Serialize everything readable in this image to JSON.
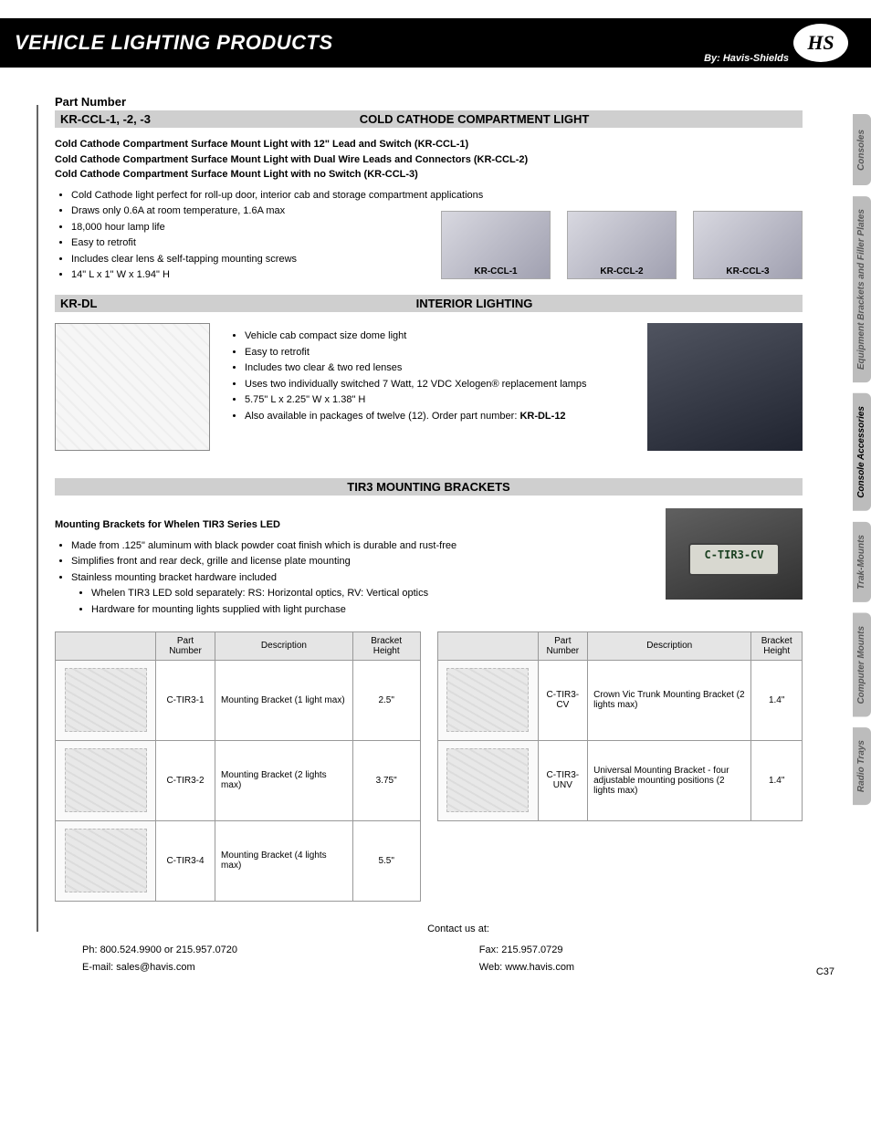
{
  "header": {
    "title": "VEHICLE LIGHTING PRODUCTS",
    "byline": "By: Havis-Shields",
    "logo_text": "HS"
  },
  "side_tabs": [
    {
      "label": "Consoles",
      "active": false
    },
    {
      "label": "Equipment Brackets and Filler Plates",
      "active": false
    },
    {
      "label": "Console Accessories",
      "active": true
    },
    {
      "label": "Trak-Mounts",
      "active": false
    },
    {
      "label": "Computer Mounts",
      "active": false
    },
    {
      "label": "Radio Trays",
      "active": false
    }
  ],
  "part_number_label": "Part Number",
  "section1": {
    "part": "KR-CCL-1, -2, -3",
    "title": "COLD CATHODE COMPARTMENT LIGHT",
    "subheads": [
      "Cold Cathode Compartment Surface Mount Light with 12\" Lead and Switch (KR-CCL-1)",
      "Cold Cathode Compartment Surface Mount Light with Dual Wire Leads and Connectors (KR-CCL-2)",
      "Cold Cathode Compartment Surface Mount Light with no Switch (KR-CCL-3)"
    ],
    "bullets": [
      "Cold Cathode light perfect for roll-up door, interior cab and storage compartment applications",
      "Draws only 0.6A at room temperature, 1.6A max",
      "18,000 hour lamp life",
      "Easy to retrofit",
      "Includes clear lens & self-tapping mounting screws",
      "14\" L x 1\" W x 1.94\" H"
    ],
    "images": [
      {
        "caption": "KR-CCL-1"
      },
      {
        "caption": "KR-CCL-2"
      },
      {
        "caption": "KR-CCL-3"
      }
    ]
  },
  "section2": {
    "part": "KR-DL",
    "title": "INTERIOR LIGHTING",
    "bullets": [
      "Vehicle cab compact size dome light",
      "Easy to retrofit",
      "Includes two clear & two red lenses",
      "Uses two individually switched 7 Watt, 12 VDC Xelogen® replacement lamps",
      "5.75\" L x 2.25\" W x 1.38\" H"
    ],
    "last_bullet_prefix": "Also available in packages of twelve (12). Order part number: ",
    "last_bullet_bold": "KR-DL-12"
  },
  "section3": {
    "title": "TIR3 MOUNTING BRACKETS",
    "subhead": "Mounting Brackets for Whelen TIR3 Series LED",
    "bullets": [
      "Made from .125\" aluminum with black powder coat finish which is durable and rust-free",
      "Simplifies front and rear deck, grille and license plate mounting",
      "Stainless mounting bracket hardware included"
    ],
    "sub_bullets": [
      "Whelen TIR3 LED sold separately: RS: Horizontal optics, RV: Vertical optics",
      "Hardware for mounting lights supplied with light purchase"
    ],
    "plate_text": "C-TIR3-CV",
    "table_headers": {
      "blank": "",
      "part": "Part Number",
      "desc": "Description",
      "height": "Bracket Height"
    },
    "table_left": [
      {
        "part": "C-TIR3-1",
        "desc": "Mounting Bracket (1 light max)",
        "height": "2.5\""
      },
      {
        "part": "C-TIR3-2",
        "desc": "Mounting Bracket (2 lights max)",
        "height": "3.75\""
      },
      {
        "part": "C-TIR3-4",
        "desc": "Mounting Bracket (4 lights max)",
        "height": "5.5\""
      }
    ],
    "table_right": [
      {
        "part": "C-TIR3-CV",
        "desc": "Crown Vic Trunk Mounting Bracket (2 lights max)",
        "height": "1.4\""
      },
      {
        "part": "C-TIR3-UNV",
        "desc": "Universal Mounting Bracket - four adjustable mounting positions (2 lights max)",
        "height": "1.4\""
      }
    ]
  },
  "footer": {
    "contact_label": "Contact us at:",
    "phone": "Ph: 800.524.9900 or 215.957.0720",
    "email": "E-mail: sales@havis.com",
    "fax": "Fax: 215.957.0729",
    "web": "Web: www.havis.com",
    "page": "C37"
  },
  "colors": {
    "header_bg": "#000000",
    "header_text": "#ffffff",
    "section_bg": "#cfcfcf",
    "tab_bg": "#bcbcbc",
    "tab_text": "#585858",
    "border": "#999999"
  }
}
